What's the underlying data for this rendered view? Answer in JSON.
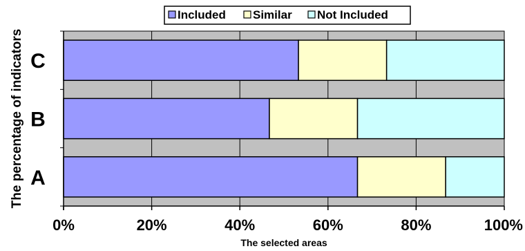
{
  "chart_data": {
    "type": "bar",
    "orientation": "horizontal",
    "stacked": "percent",
    "title": "",
    "xlabel": "The selected areas",
    "ylabel": "The percentage of indicators",
    "categories": [
      "C",
      "B",
      "A"
    ],
    "series": [
      {
        "name": "Included",
        "color": "#9999ff",
        "values": [
          53.3,
          46.7,
          66.7
        ]
      },
      {
        "name": "Similar",
        "color": "#ffffcc",
        "values": [
          20.0,
          20.0,
          20.0
        ]
      },
      {
        "name": "Not Included",
        "color": "#ccffff",
        "values": [
          26.7,
          33.3,
          13.3
        ]
      }
    ],
    "xlim": [
      0,
      100
    ],
    "xticks": [
      "0%",
      "20%",
      "40%",
      "60%",
      "80%",
      "100%"
    ],
    "grid": true,
    "plot_background": "#c0c0c0",
    "legend_position": "top"
  }
}
